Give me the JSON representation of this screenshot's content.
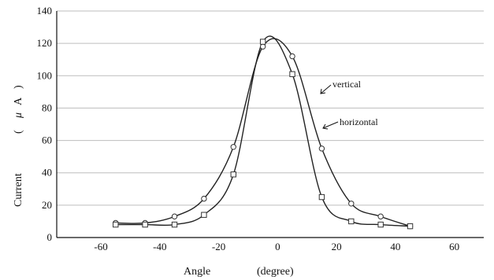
{
  "chart_data": {
    "type": "line",
    "title": "",
    "xlabel": "Angle (degree)",
    "xlabel_parts": [
      "Angle",
      "(degree)"
    ],
    "ylabel": "Current (μA)",
    "ylabel_parts": [
      "Current",
      "(",
      "μ",
      "A",
      ")"
    ],
    "xlim": [
      -75,
      70
    ],
    "ylim": [
      0,
      140
    ],
    "xticks": [
      -60,
      -40,
      -20,
      0,
      20,
      40,
      60
    ],
    "xtick_labels": [
      "-60",
      "-40",
      "-20",
      "0",
      "20",
      "40",
      "60"
    ],
    "yticks": [
      0,
      20,
      40,
      60,
      80,
      100,
      120,
      140
    ],
    "ytick_labels": [
      "0",
      "20",
      "40",
      "60",
      "80",
      "100",
      "120",
      "140"
    ],
    "grid": "horizontal",
    "legend": "none",
    "series": [
      {
        "name": "vertical",
        "marker": "circle",
        "color": "#222222",
        "points": [
          {
            "x": -55,
            "y": 9
          },
          {
            "x": -45,
            "y": 9
          },
          {
            "x": -35,
            "y": 13
          },
          {
            "x": -25,
            "y": 24
          },
          {
            "x": -15,
            "y": 56
          },
          {
            "x": -5,
            "y": 118
          },
          {
            "x": 5,
            "y": 112
          },
          {
            "x": 15,
            "y": 55
          },
          {
            "x": 25,
            "y": 21
          },
          {
            "x": 35,
            "y": 13
          },
          {
            "x": 45,
            "y": 7
          }
        ]
      },
      {
        "name": "horizontal",
        "marker": "square",
        "color": "#222222",
        "points": [
          {
            "x": -55,
            "y": 8
          },
          {
            "x": -45,
            "y": 8
          },
          {
            "x": -35,
            "y": 8
          },
          {
            "x": -25,
            "y": 14
          },
          {
            "x": -15,
            "y": 39
          },
          {
            "x": -5,
            "y": 121
          },
          {
            "x": 5,
            "y": 101
          },
          {
            "x": 15,
            "y": 25
          },
          {
            "x": 25,
            "y": 10
          },
          {
            "x": 35,
            "y": 8
          },
          {
            "x": 45,
            "y": 7
          }
        ]
      }
    ],
    "annotations": [
      {
        "text": "vertical",
        "series": "vertical",
        "points_at": {
          "x": 9,
          "y": 87
        }
      },
      {
        "text": "horizontal",
        "series": "horizontal",
        "points_at": {
          "x": 10,
          "y": 67
        }
      }
    ]
  }
}
